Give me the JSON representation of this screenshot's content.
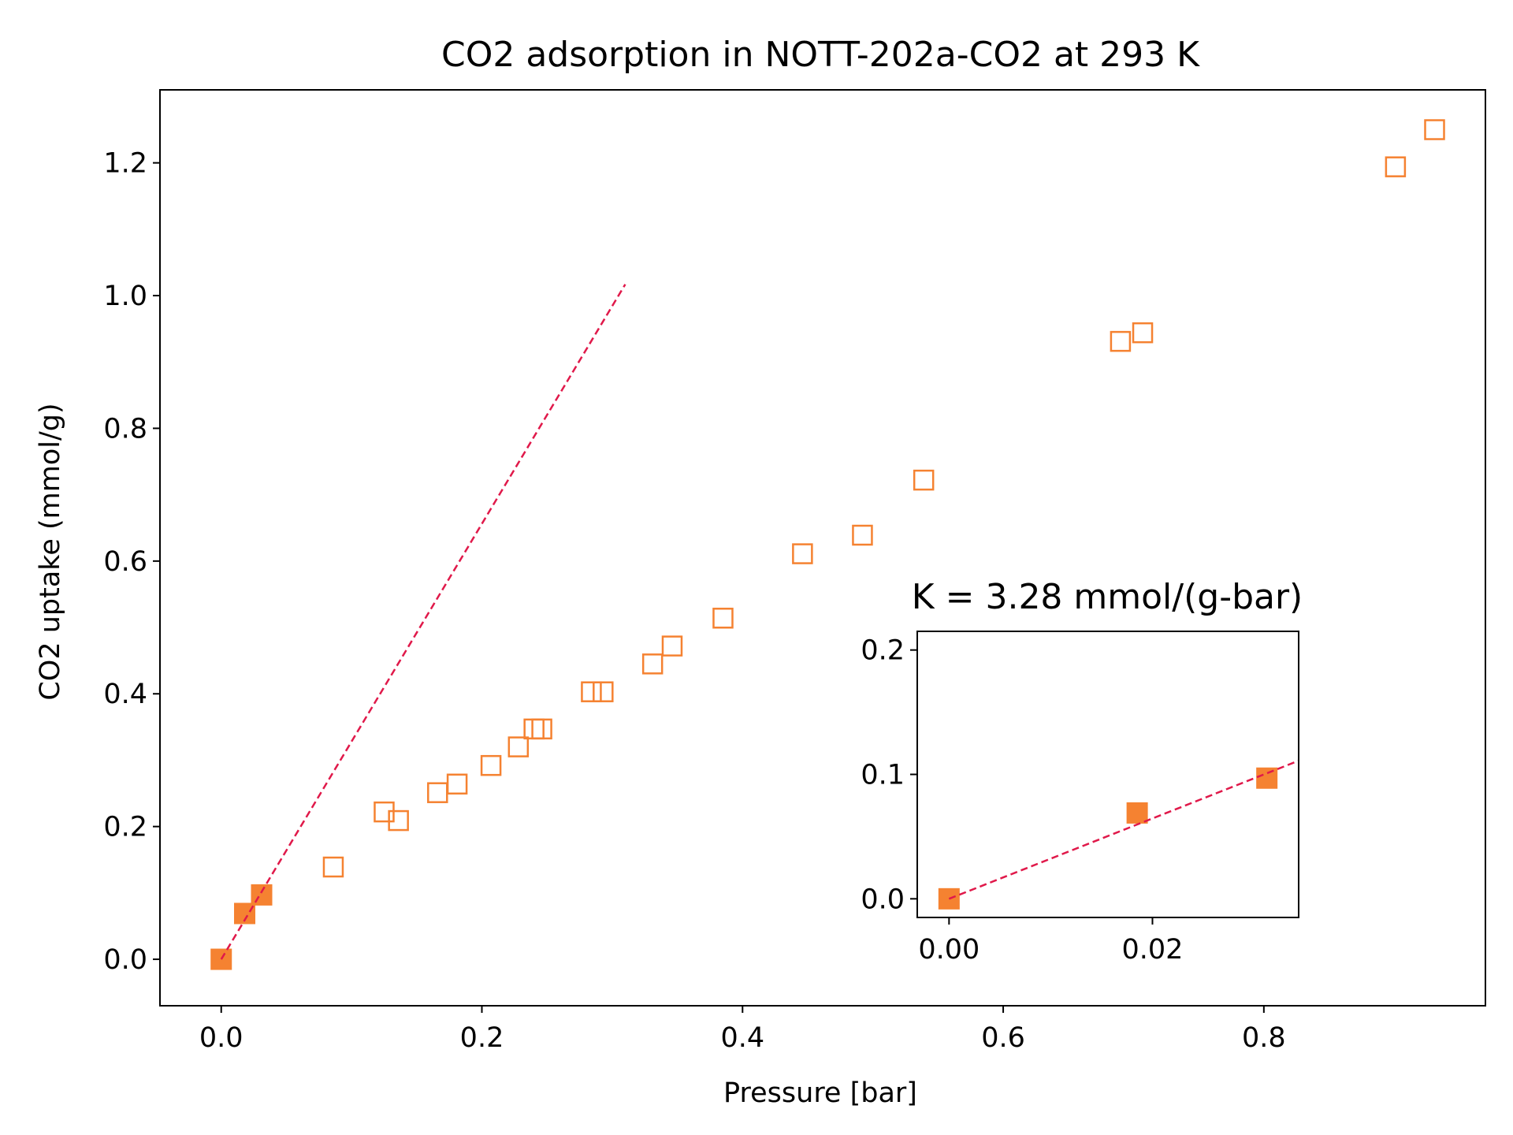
{
  "chart_data": [
    {
      "type": "scatter",
      "title": "CO2 adsorption in NOTT-202a-CO2 at 293 K",
      "xlabel": "Pressure [bar]",
      "ylabel": "CO2 uptake (mmol/g)",
      "xlim": [
        -0.047,
        0.97
      ],
      "ylim": [
        -0.07,
        1.31
      ],
      "xticks": [
        {
          "value": 0.0,
          "label": "0.0"
        },
        {
          "value": 0.2,
          "label": "0.2"
        },
        {
          "value": 0.4,
          "label": "0.4"
        },
        {
          "value": 0.6,
          "label": "0.6"
        },
        {
          "value": 0.8,
          "label": "0.8"
        }
      ],
      "yticks": [
        {
          "value": 0.0,
          "label": "0.0"
        },
        {
          "value": 0.2,
          "label": "0.2"
        },
        {
          "value": 0.4,
          "label": "0.4"
        },
        {
          "value": 0.6,
          "label": "0.6"
        },
        {
          "value": 0.8,
          "label": "0.8"
        },
        {
          "value": 1.0,
          "label": "1.0"
        },
        {
          "value": 1.2,
          "label": "1.2"
        }
      ],
      "grid": false,
      "series": [
        {
          "marker": "square-filled",
          "color": "#f58231",
          "points": [
            [
              0.0,
              0.0
            ],
            [
              0.018,
              0.069
            ],
            [
              0.031,
              0.097
            ]
          ]
        },
        {
          "marker": "square-open",
          "color": "#f58231",
          "points": [
            [
              0.086,
              0.139
            ],
            [
              0.125,
              0.222
            ],
            [
              0.136,
              0.209
            ],
            [
              0.166,
              0.251
            ],
            [
              0.181,
              0.264
            ],
            [
              0.207,
              0.292
            ],
            [
              0.228,
              0.32
            ],
            [
              0.24,
              0.347
            ],
            [
              0.246,
              0.347
            ],
            [
              0.284,
              0.403
            ],
            [
              0.293,
              0.403
            ],
            [
              0.331,
              0.445
            ],
            [
              0.346,
              0.472
            ],
            [
              0.385,
              0.514
            ],
            [
              0.446,
              0.611
            ],
            [
              0.492,
              0.639
            ],
            [
              0.539,
              0.722
            ],
            [
              0.69,
              0.931
            ],
            [
              0.707,
              0.944
            ],
            [
              0.901,
              1.194
            ],
            [
              0.931,
              1.25
            ]
          ]
        },
        {
          "type": "line",
          "style": "dashed",
          "color": "#e0194a",
          "points": [
            [
              0.0,
              0.0
            ],
            [
              0.31,
              1.017
            ]
          ]
        }
      ]
    },
    {
      "type": "scatter",
      "title": "K = 3.28 mmol/(g-bar)",
      "xlim": [
        -0.0025,
        0.0275
      ],
      "ylim": [
        -0.015,
        0.215
      ],
      "xticks": [
        {
          "value": 0.0,
          "label": "0.00"
        },
        {
          "value": 0.016,
          "label": "0.02"
        }
      ],
      "yticks": [
        {
          "value": 0.0,
          "label": "0.0"
        },
        {
          "value": 0.1,
          "label": "0.1"
        },
        {
          "value": 0.2,
          "label": "0.2"
        }
      ],
      "grid": false,
      "series": [
        {
          "marker": "square-filled",
          "color": "#f58231",
          "points": [
            [
              0.0,
              0.0
            ],
            [
              0.0148,
              0.069
            ],
            [
              0.025,
              0.097
            ]
          ]
        },
        {
          "type": "line",
          "style": "dashed",
          "color": "#e0194a",
          "points": [
            [
              0.0,
              0.0
            ],
            [
              0.0275,
              0.111
            ]
          ]
        }
      ]
    }
  ]
}
